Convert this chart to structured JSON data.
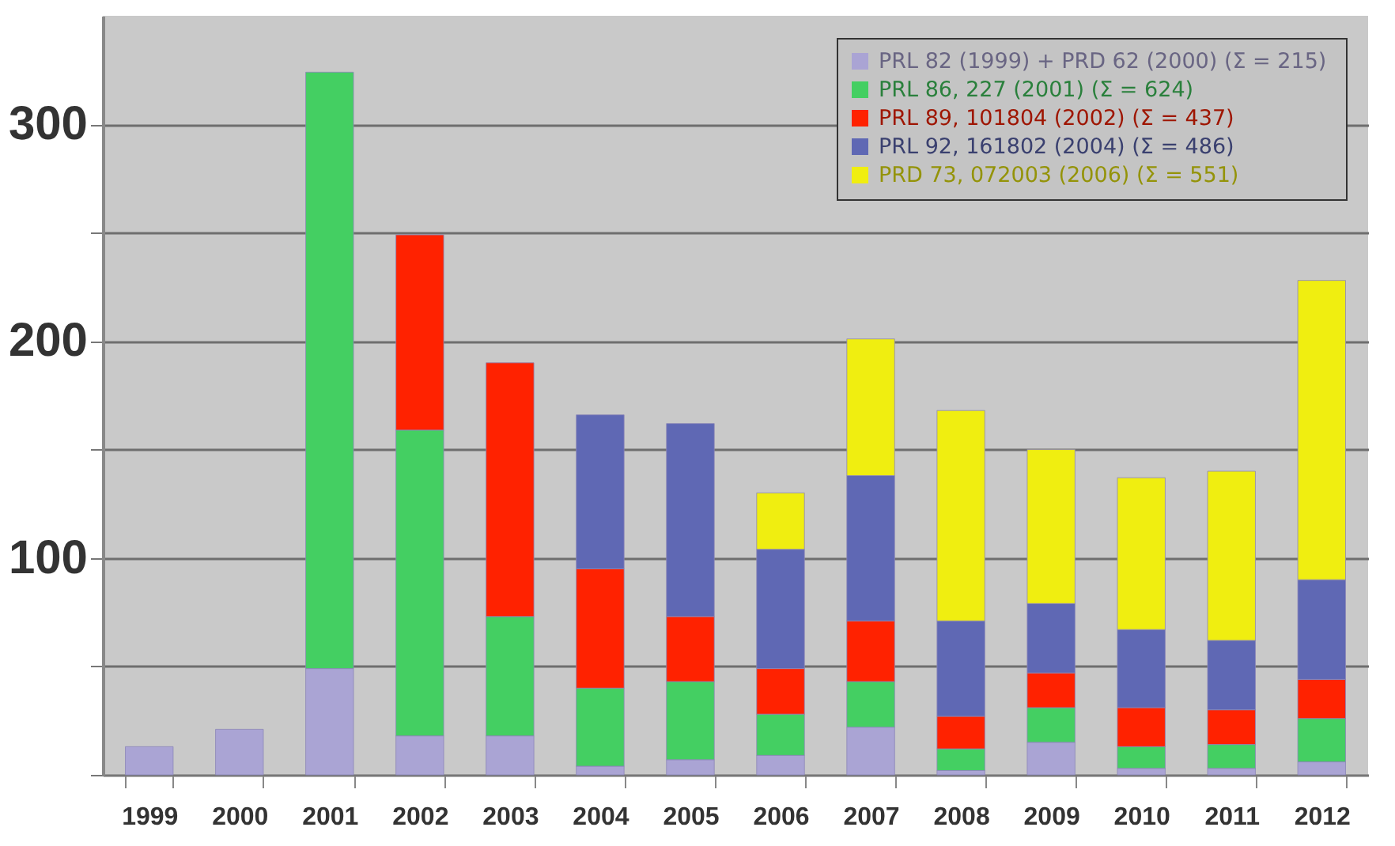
{
  "chart_data": {
    "type": "bar",
    "stacked": true,
    "categories": [
      "1999",
      "2000",
      "2001",
      "2002",
      "2003",
      "2004",
      "2005",
      "2006",
      "2007",
      "2008",
      "2009",
      "2010",
      "2011",
      "2012"
    ],
    "series": [
      {
        "name": "PRL 82 (1999) + PRD 62 (2000)  (Σ = 215)",
        "color": "#aaa4d4",
        "values": [
          13,
          21,
          49,
          18,
          18,
          4,
          7,
          9,
          22,
          2,
          15,
          3,
          3,
          6
        ]
      },
      {
        "name": "PRL 86, 227 (2001)  (Σ = 624)",
        "color": "#44cf62",
        "values": [
          null,
          null,
          275,
          141,
          55,
          36,
          36,
          19,
          21,
          10,
          16,
          10,
          11,
          20
        ]
      },
      {
        "name": "PRL 89, 101804 (2002) (Σ = 437)",
        "color": "#ff2200",
        "values": [
          null,
          null,
          null,
          90,
          117,
          55,
          30,
          21,
          28,
          15,
          16,
          18,
          16,
          18
        ]
      },
      {
        "name": "PRL 92, 161802 (2004) (Σ = 486)",
        "color": "#5f68b4",
        "values": [
          null,
          null,
          null,
          null,
          null,
          71,
          89,
          55,
          67,
          44,
          32,
          36,
          32,
          46
        ]
      },
      {
        "name": "PRD 73, 072003 (2006) (Σ = 551)",
        "color": "#f0ee10",
        "values": [
          null,
          null,
          null,
          null,
          null,
          null,
          null,
          26,
          63,
          97,
          71,
          70,
          78,
          138
        ]
      }
    ],
    "ylim": [
      0,
      350
    ],
    "yticks": [
      {
        "value": 0,
        "label": null
      },
      {
        "value": 50,
        "label": null
      },
      100,
      {
        "value": 150,
        "label": null
      },
      200,
      {
        "value": 250,
        "label": null
      },
      300
    ],
    "grid": "y",
    "legend": "top right"
  }
}
